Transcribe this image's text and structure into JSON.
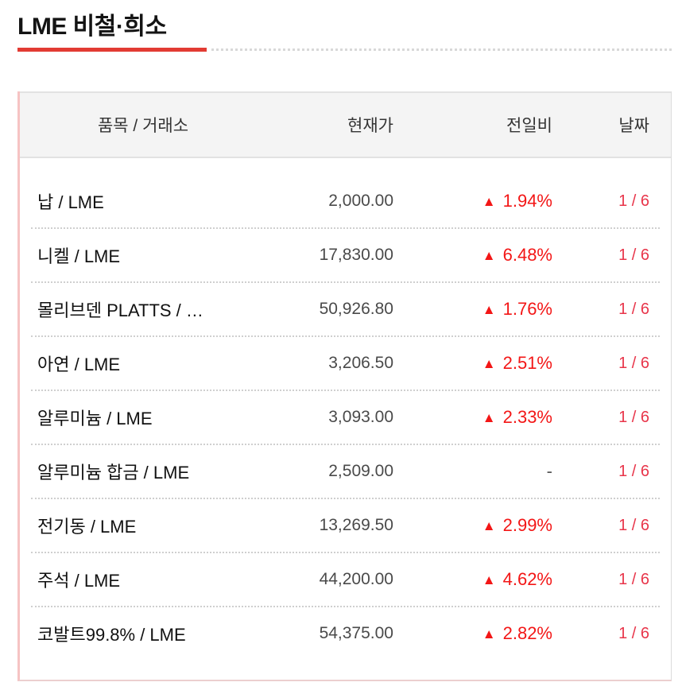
{
  "page": {
    "title": "LME 비철·희소"
  },
  "colors": {
    "accent_red": "#e23b33",
    "change_up_red": "#f31616",
    "date_red": "#e8354a",
    "price_gray": "#4a4a4a",
    "header_bg": "#f4f4f4",
    "table_left_border_pink": "#f6c3c3"
  },
  "table": {
    "up_symbol": "▲",
    "headers": {
      "item": "품목 / 거래소",
      "price": "현재가",
      "change": "전일비",
      "date": "날짜"
    },
    "rows": [
      {
        "item": "납 / LME",
        "price": "2,000.00",
        "direction": "up",
        "change": "1.94%",
        "date": "1 / 6"
      },
      {
        "item": "니켈 / LME",
        "price": "17,830.00",
        "direction": "up",
        "change": "6.48%",
        "date": "1 / 6"
      },
      {
        "item": "몰리브덴 PLATTS / …",
        "price": "50,926.80",
        "direction": "up",
        "change": "1.76%",
        "date": "1 / 6"
      },
      {
        "item": "아연 / LME",
        "price": "3,206.50",
        "direction": "up",
        "change": "2.51%",
        "date": "1 / 6"
      },
      {
        "item": "알루미늄 / LME",
        "price": "3,093.00",
        "direction": "up",
        "change": "2.33%",
        "date": "1 / 6"
      },
      {
        "item": "알루미늄 합금 / LME",
        "price": "2,509.00",
        "direction": "none",
        "change": "-",
        "date": "1 / 6"
      },
      {
        "item": "전기동 / LME",
        "price": "13,269.50",
        "direction": "up",
        "change": "2.99%",
        "date": "1 / 6"
      },
      {
        "item": "주석 / LME",
        "price": "44,200.00",
        "direction": "up",
        "change": "4.62%",
        "date": "1 / 6"
      },
      {
        "item": "코발트99.8% / LME",
        "price": "54,375.00",
        "direction": "up",
        "change": "2.82%",
        "date": "1 / 6"
      }
    ]
  }
}
